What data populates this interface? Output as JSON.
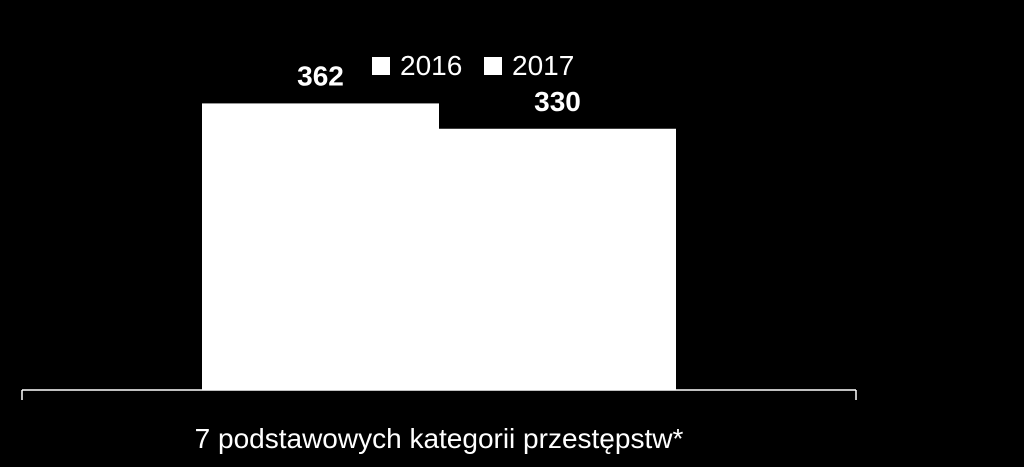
{
  "chart_data": {
    "type": "bar",
    "categories": [
      "7 podstawowych kategorii przestępstw*"
    ],
    "series": [
      {
        "name": "2016",
        "values": [
          362
        ],
        "color": "#ffffff"
      },
      {
        "name": "2017",
        "values": [
          330
        ],
        "color": "#ffffff"
      }
    ],
    "title": "",
    "xlabel": "",
    "ylabel": "",
    "ylim": [
      0,
      480
    ],
    "grid": false,
    "legend_position": "top",
    "data_labels": true,
    "background": "#000000",
    "axis_color": "#ffffff",
    "text_color": "#ffffff"
  }
}
